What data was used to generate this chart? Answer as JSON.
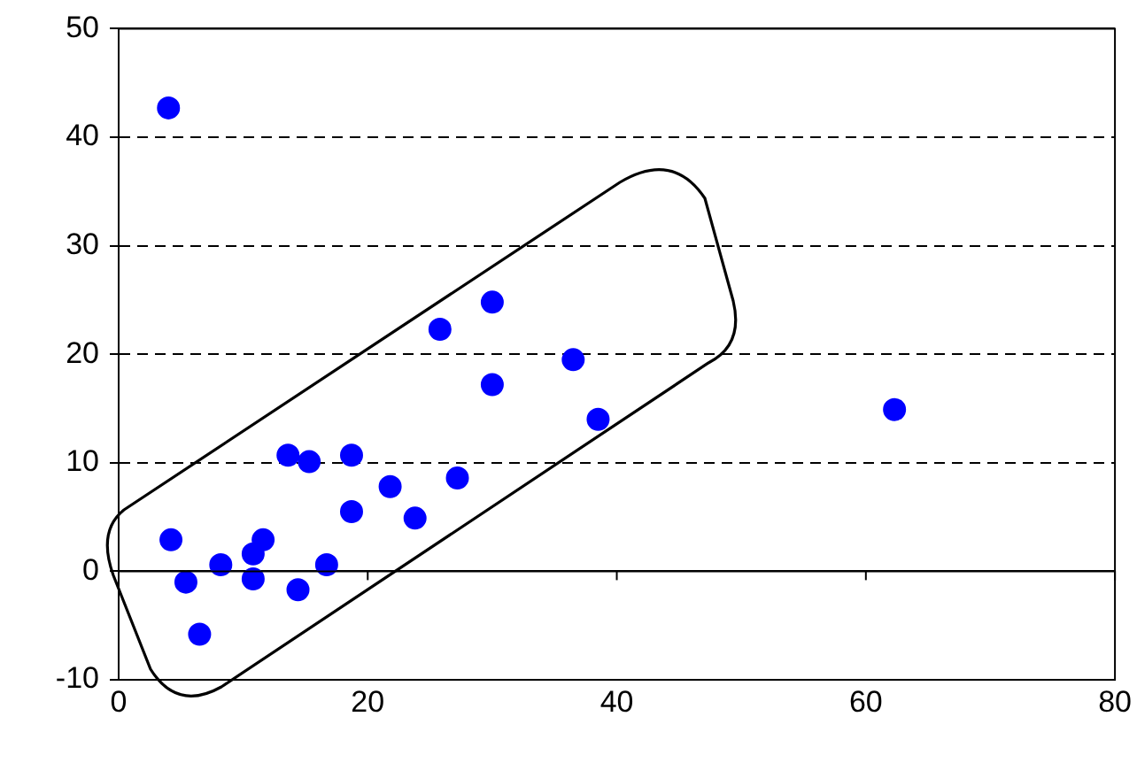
{
  "chart_data": {
    "type": "scatter",
    "marker": "circle",
    "grid": "y",
    "legend": false,
    "xlim": [
      0,
      80
    ],
    "xticks": [
      0,
      20,
      40,
      60,
      80
    ],
    "ylim": [
      -10,
      50
    ],
    "yticks": [
      -10,
      0,
      10,
      20,
      30,
      40,
      50
    ],
    "series": [
      {
        "color": "#0000ff",
        "x": [
          4.0,
          4.2,
          5.4,
          6.5,
          8.2,
          10.8,
          10.8,
          11.6,
          13.6,
          14.4,
          15.3,
          16.7,
          18.7,
          18.7,
          21.8,
          23.8,
          25.8,
          27.2,
          30.0,
          30.0,
          36.5,
          38.5,
          62.3
        ],
        "values": [
          42.7,
          2.9,
          -1.0,
          -5.8,
          0.6,
          1.6,
          -0.7,
          2.9,
          10.7,
          -1.7,
          10.1,
          0.6,
          10.7,
          5.5,
          7.8,
          4.9,
          22.3,
          8.6,
          24.8,
          17.2,
          19.5,
          14.0,
          14.9
        ]
      }
    ]
  }
}
